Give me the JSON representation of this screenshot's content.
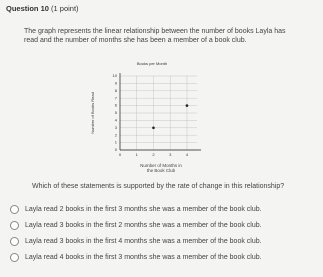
{
  "header": {
    "title": "Question 10",
    "points": "(1 point)"
  },
  "question": {
    "text": "The graph represents the linear relationship between the number of books Layla has read and the number of months she has been a member of a book club.",
    "prompt": "Which of these statements is supported by the rate of change in this relationship?"
  },
  "chart_data": {
    "type": "scatter",
    "title": "Books per Month",
    "x_label": "Number of Months in the Book Club",
    "y_label": "Number of Books Read",
    "x": [
      2,
      4
    ],
    "values": [
      3,
      6
    ],
    "color": "#222222",
    "xlim": [
      0,
      4.6
    ],
    "ylim": [
      0,
      10
    ],
    "xticks": [
      0,
      1,
      2,
      3,
      4
    ],
    "yticks": [
      0,
      1,
      2,
      3,
      4,
      5,
      6,
      7,
      8,
      9,
      10
    ],
    "grid": true
  },
  "options": [
    "Layla read 2 books in the first 3 months she was a member of the book club.",
    "Layla read 3 books in the first 2 months she was a member of the book club.",
    "Layla read 3 books in the first 4 months she was a member of the book club.",
    "Layla read 4 books in the first 3 months she was a member of the book club."
  ]
}
